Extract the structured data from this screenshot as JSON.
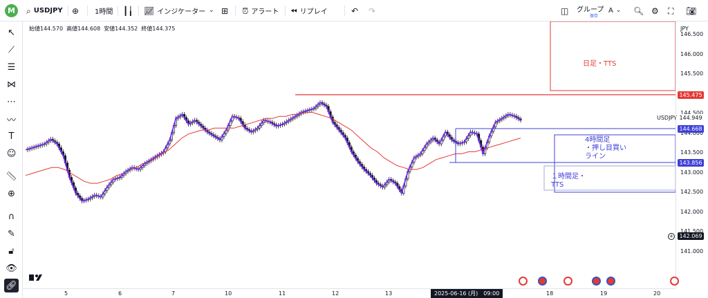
{
  "toolbar": {
    "avatar_letter": "M",
    "symbol": "USDJPY",
    "interval": "1時間",
    "indicators": "インジケーター",
    "alert": "アラート",
    "replay": "リプレイ",
    "group": "グループ",
    "group_sub": "保存",
    "font_letter": "A"
  },
  "ohlc": {
    "open": "始値144.570",
    "high": "高値144.608",
    "low": "安値144.352",
    "close": "終値144.375"
  },
  "currency": "JPY",
  "symbol_label": "USDJPY",
  "notes": {
    "daily_tts": "日足・TTS",
    "h4_line1": "4時間足",
    "h4_line2": "・押し目買い",
    "h4_line3": "ライン",
    "h1_line1": "１時間足・",
    "h1_line2": "TTS"
  },
  "price_ticks": [
    "146.500",
    "146.000",
    "145.500",
    "145.000",
    "144.500",
    "144.000",
    "143.500",
    "143.000",
    "142.500",
    "142.000",
    "141.500",
    "141.000"
  ],
  "price_tags": {
    "red_line": "145.475",
    "current": "144.949",
    "blue_upper": "144.668",
    "blue_lower": "143.856",
    "crosshair": "142.069"
  },
  "time_ticks": [
    "5",
    "6",
    "7",
    "10",
    "11",
    "12",
    "13",
    "7",
    "18",
    "19",
    "20"
  ],
  "time_cursor": "2025-06-16 (月)　09:00",
  "colors": {
    "up": "#131722",
    "ma": "#e53935",
    "zigzag": "#7b2ff7",
    "blue_line": "#3f3fd8",
    "red_line": "#e53935",
    "tv_logo": "#131722"
  },
  "chart_data": {
    "type": "candlestick",
    "title": "",
    "xlabel": "",
    "ylabel": "",
    "ylim": [
      140.9,
      146.9
    ],
    "hlines": [
      145.475,
      144.668,
      143.856
    ],
    "series": [
      {
        "values": [
          144.05,
          144.1,
          144.15,
          144.2,
          144.32,
          144.2,
          143.9,
          143.35,
          142.95,
          142.75,
          142.8,
          142.9,
          142.85,
          143.1,
          143.3,
          143.35,
          143.5,
          143.6,
          143.55,
          143.7,
          143.8,
          143.9,
          144.0,
          144.3,
          144.85,
          144.95,
          144.7,
          144.8,
          144.65,
          144.5,
          144.4,
          144.3,
          144.55,
          144.9,
          144.85,
          144.6,
          144.5,
          144.6,
          144.8,
          144.75,
          144.65,
          144.7,
          144.8,
          144.9,
          145.0,
          145.05,
          145.1,
          145.25,
          145.15,
          144.75,
          144.55,
          144.35,
          144.0,
          143.75,
          143.55,
          143.4,
          143.2,
          143.1,
          143.3,
          143.2,
          142.95,
          143.5,
          143.85,
          143.95,
          144.2,
          144.35,
          144.2,
          144.5,
          144.3,
          144.2,
          144.25,
          144.5,
          144.45,
          143.95,
          144.4,
          144.75,
          144.85,
          144.95,
          144.9,
          144.8
        ]
      },
      {
        "values": [
          143.4,
          143.45,
          143.5,
          143.55,
          143.6,
          143.6,
          143.55,
          143.45,
          143.35,
          143.25,
          143.2,
          143.2,
          143.25,
          143.3,
          143.4,
          143.45,
          143.55,
          143.6,
          143.7,
          143.75,
          143.85,
          143.95,
          144.05,
          144.2,
          144.35,
          144.45,
          144.5,
          144.55,
          144.55,
          144.6,
          144.6,
          144.6,
          144.6,
          144.65,
          144.7,
          144.75,
          144.8,
          144.85,
          144.85,
          144.9,
          144.9,
          144.95,
          144.95,
          145.0,
          145.0,
          144.95,
          144.9,
          144.85,
          144.75,
          144.65,
          144.55,
          144.4,
          144.25,
          144.1,
          144.0,
          143.85,
          143.75,
          143.65,
          143.6,
          143.55,
          143.55,
          143.6,
          143.7,
          143.8,
          143.85,
          143.9,
          143.95,
          143.95,
          144.0,
          144.0,
          144.05,
          144.1,
          144.15,
          144.2,
          144.25,
          144.3,
          144.35
        ]
      }
    ]
  }
}
